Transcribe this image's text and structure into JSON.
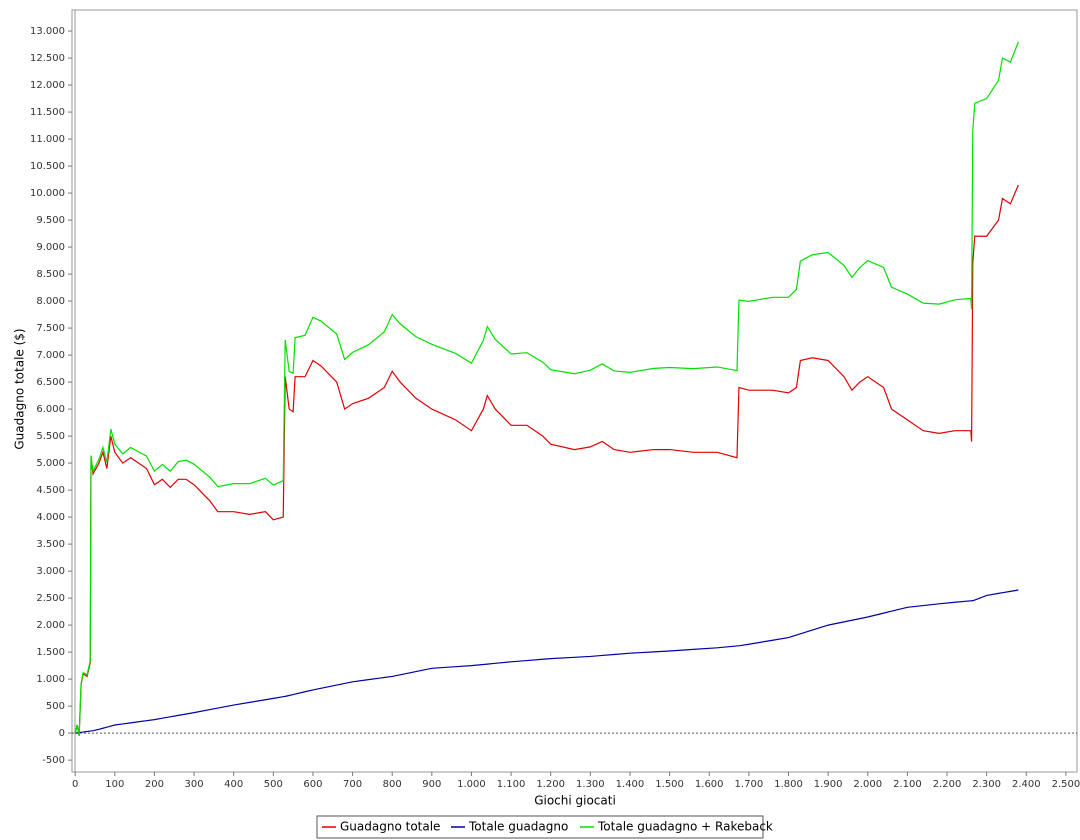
{
  "chart_data": {
    "type": "line",
    "xlabel": "Giochi giocati",
    "ylabel": "Guadagno totale  ($)",
    "xlim": [
      -8,
      2528
    ],
    "ylim": [
      -720,
      13390
    ],
    "xticks": [
      0,
      100,
      200,
      300,
      400,
      500,
      600,
      700,
      800,
      900,
      {
        "value": 1000,
        "label": "1.000"
      },
      {
        "value": 1100,
        "label": "1.100"
      },
      {
        "value": 1200,
        "label": "1.200"
      },
      {
        "value": 1300,
        "label": "1.300"
      },
      {
        "value": 1400,
        "label": "1.400"
      },
      {
        "value": 1500,
        "label": "1.500"
      },
      {
        "value": 1600,
        "label": "1.600"
      },
      {
        "value": 1700,
        "label": "1.700"
      },
      {
        "value": 1800,
        "label": "1.800"
      },
      {
        "value": 1900,
        "label": "1.900"
      },
      {
        "value": 2000,
        "label": "2.000"
      },
      {
        "value": 2100,
        "label": "2.100"
      },
      {
        "value": 2200,
        "label": "2.200"
      },
      {
        "value": 2300,
        "label": "2.300"
      },
      {
        "value": 2400,
        "label": "2.400"
      },
      {
        "value": 2500,
        "label": "2.500"
      }
    ],
    "yticks": [
      -500,
      0,
      500,
      {
        "value": 1000,
        "label": "1.000"
      },
      {
        "value": 1500,
        "label": "1.500"
      },
      {
        "value": 2000,
        "label": "2.000"
      },
      {
        "value": 2500,
        "label": "2.500"
      },
      {
        "value": 3000,
        "label": "3.000"
      },
      {
        "value": 3500,
        "label": "3.500"
      },
      {
        "value": 4000,
        "label": "4.000"
      },
      {
        "value": 4500,
        "label": "4.500"
      },
      {
        "value": 5000,
        "label": "5.000"
      },
      {
        "value": 5500,
        "label": "5.500"
      },
      {
        "value": 6000,
        "label": "6.000"
      },
      {
        "value": 6500,
        "label": "6.500"
      },
      {
        "value": 7000,
        "label": "7.000"
      },
      {
        "value": 7500,
        "label": "7.500"
      },
      {
        "value": 8000,
        "label": "8.000"
      },
      {
        "value": 8500,
        "label": "8.500"
      },
      {
        "value": 9000,
        "label": "9.000"
      },
      {
        "value": 9500,
        "label": "9.500"
      },
      {
        "value": 10000,
        "label": "10.000"
      },
      {
        "value": 10500,
        "label": "10.500"
      },
      {
        "value": 11000,
        "label": "11.000"
      },
      {
        "value": 11500,
        "label": "11.500"
      },
      {
        "value": 12000,
        "label": "12.000"
      },
      {
        "value": 12500,
        "label": "12.500"
      },
      {
        "value": 13000,
        "label": "13.000"
      }
    ],
    "grid": false,
    "legend": "bottom",
    "x": [
      0,
      5,
      10,
      15,
      20,
      30,
      38,
      40,
      45,
      60,
      70,
      80,
      90,
      100,
      120,
      140,
      160,
      180,
      200,
      220,
      240,
      260,
      280,
      300,
      340,
      360,
      400,
      440,
      480,
      500,
      525,
      530,
      540,
      550,
      555,
      580,
      600,
      620,
      660,
      680,
      700,
      740,
      780,
      800,
      820,
      860,
      900,
      960,
      1000,
      1030,
      1040,
      1060,
      1100,
      1140,
      1180,
      1200,
      1260,
      1300,
      1330,
      1360,
      1400,
      1460,
      1500,
      1560,
      1620,
      1670,
      1675,
      1700,
      1760,
      1800,
      1820,
      1830,
      1860,
      1900,
      1940,
      1960,
      1980,
      2000,
      2040,
      2060,
      2100,
      2140,
      2180,
      2220,
      2260,
      2262,
      2265,
      2270,
      2300,
      2330,
      2340,
      2360,
      2380
    ],
    "series": [
      {
        "name": "Guadagno totale",
        "color": "#e00000",
        "values": [
          0,
          150,
          -50,
          900,
          1100,
          1050,
          1300,
          5100,
          4800,
          5000,
          5200,
          4900,
          5500,
          5200,
          5000,
          5100,
          5000,
          4900,
          4600,
          4700,
          4550,
          4700,
          4700,
          4600,
          4300,
          4100,
          4100,
          4050,
          4100,
          3950,
          4000,
          6600,
          6000,
          5950,
          6600,
          6600,
          6900,
          6800,
          6500,
          6000,
          6100,
          6200,
          6400,
          6700,
          6500,
          6200,
          6000,
          5800,
          5600,
          6000,
          6250,
          6000,
          5700,
          5700,
          5500,
          5350,
          5250,
          5300,
          5400,
          5250,
          5200,
          5250,
          5250,
          5200,
          5200,
          5100,
          6400,
          6350,
          6350,
          6300,
          6400,
          6900,
          6950,
          6900,
          6600,
          6350,
          6500,
          6600,
          6400,
          6000,
          5800,
          5600,
          5550,
          5600,
          5600,
          5400,
          8700,
          9200,
          9200,
          9500,
          9900,
          9800,
          10150
        ]
      },
      {
        "name": "Totale guadagno",
        "color": "#0000a8",
        "values": [
          0,
          5,
          10,
          15,
          20,
          30,
          38,
          40,
          45,
          70,
          90,
          110,
          130,
          150,
          170,
          190,
          210,
          230,
          250,
          276,
          302,
          328,
          354,
          380,
          436,
          464,
          520,
          569,
          618,
          643,
          674,
          680,
          697,
          714,
          723,
          766,
          800,
          830,
          890,
          920,
          950,
          990,
          1030,
          1050,
          1080,
          1140,
          1200,
          1230,
          1250,
          1271,
          1278,
          1292,
          1320,
          1344,
          1368,
          1380,
          1404,
          1420,
          1438,
          1456,
          1480,
          1504,
          1520,
          1550,
          1580,
          1614,
          1617,
          1645,
          1720,
          1770,
          1816,
          1839,
          1908,
          2000,
          2060,
          2090,
          2120,
          2150,
          2222,
          2258,
          2330,
          2362,
          2394,
          2423,
          2450,
          2451,
          2453,
          2463,
          2550,
          2588,
          2600,
          2625,
          2650
        ]
      },
      {
        "name": "Totale guadagno + Rakeback",
        "color": "#00e000",
        "values": [
          0,
          155,
          -40,
          915,
          1120,
          1080,
          1338,
          5140,
          4845,
          5070,
          5290,
          5010,
          5630,
          5350,
          5170,
          5290,
          5210,
          5130,
          4850,
          4976,
          4852,
          5028,
          5054,
          4980,
          4736,
          4564,
          4620,
          4619,
          4718,
          4593,
          4674,
          7280,
          6697,
          6664,
          7323,
          7366,
          7700,
          7630,
          7390,
          6920,
          7050,
          7190,
          7430,
          7750,
          7580,
          7340,
          7200,
          7030,
          6850,
          7271,
          7528,
          7292,
          7020,
          7044,
          6868,
          6730,
          6654,
          6720,
          6838,
          6706,
          6680,
          6754,
          6770,
          6750,
          6780,
          6714,
          8017,
          7995,
          8070,
          8070,
          8216,
          8739,
          8858,
          8900,
          8660,
          8440,
          8620,
          8750,
          8622,
          8258,
          8130,
          7962,
          7944,
          8023,
          8050,
          7851,
          11153,
          11663,
          11750,
          12088,
          12500,
          12425,
          12800
        ]
      }
    ]
  }
}
